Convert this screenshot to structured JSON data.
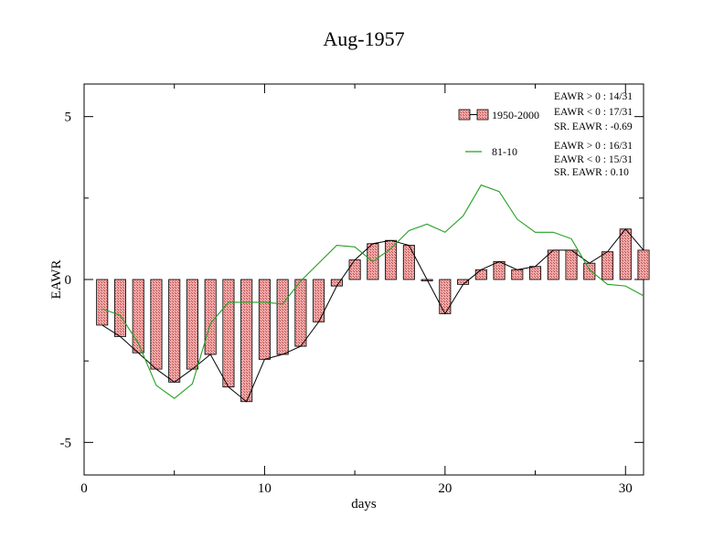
{
  "chart_data": {
    "type": "bar",
    "title": "Aug-1957",
    "xlabel": "days",
    "ylabel": "EAWR",
    "xlim": [
      0,
      31
    ],
    "ylim": [
      -6,
      6
    ],
    "x_ticks": [
      0,
      10,
      20,
      30
    ],
    "x_tick_labels": [
      "0",
      "10",
      "20",
      "30"
    ],
    "y_ticks": [
      5,
      0,
      -5
    ],
    "y_tick_labels": [
      "5",
      "0",
      "-5"
    ],
    "grid": false,
    "legend_position": "top-right",
    "colors": {
      "bar_fill": "#f0a0a0",
      "bar_outline": "#000000",
      "series_1950_2000_line": "#000000",
      "series_81_10_line": "#22a022"
    },
    "x": [
      1,
      2,
      3,
      4,
      5,
      6,
      7,
      8,
      9,
      10,
      11,
      12,
      13,
      14,
      15,
      16,
      17,
      18,
      19,
      20,
      21,
      22,
      23,
      24,
      25,
      26,
      27,
      28,
      29,
      30,
      31
    ],
    "series": [
      {
        "name": "1950-2000",
        "style": "bar+line",
        "values": [
          -1.4,
          -1.75,
          -2.25,
          -2.75,
          -3.15,
          -2.75,
          -2.3,
          -3.3,
          -3.75,
          -2.45,
          -2.3,
          -2.05,
          -1.3,
          -0.2,
          0.6,
          1.1,
          1.2,
          1.05,
          0.0,
          -1.05,
          -0.15,
          0.3,
          0.55,
          0.3,
          0.4,
          0.9,
          0.9,
          0.5,
          0.85,
          1.55,
          0.9
        ]
      },
      {
        "name": "81-10",
        "style": "line",
        "values": [
          -0.9,
          -1.1,
          -1.95,
          -3.25,
          -3.65,
          -3.2,
          -1.35,
          -0.7,
          -0.7,
          -0.7,
          -0.75,
          -0.05,
          0.5,
          1.05,
          1.0,
          0.55,
          0.95,
          1.5,
          1.7,
          1.45,
          1.95,
          2.9,
          2.7,
          1.85,
          1.45,
          1.45,
          1.25,
          0.3,
          -0.15,
          -0.2,
          -0.5
        ]
      }
    ],
    "stats": {
      "group1": [
        "EAWR > 0 : 14/31",
        "EAWR < 0 : 17/31",
        "SR. EAWR : -0.69"
      ],
      "group2": [
        "EAWR > 0 : 16/31",
        "EAWR < 0 : 15/31",
        "SR. EAWR :  0.10"
      ]
    }
  }
}
